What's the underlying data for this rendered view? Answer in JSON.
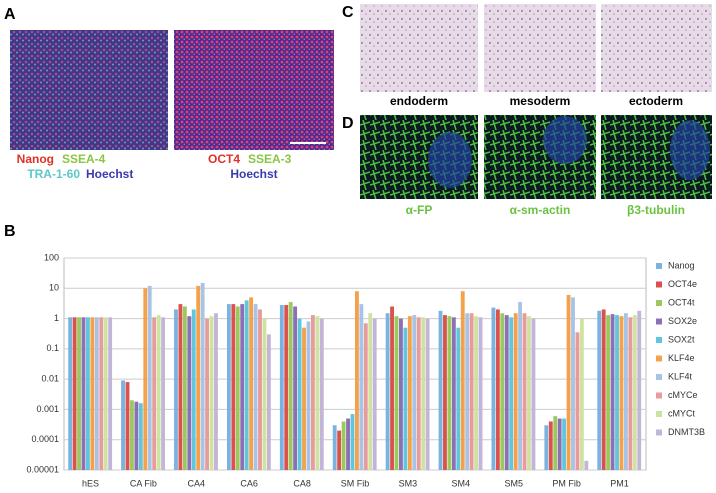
{
  "panels": {
    "a": {
      "label": "A",
      "left": {
        "line1a": "Nanog",
        "line1b": "SSEA-4",
        "line2a": "TRA-1-60",
        "line2b": "Hoechst"
      },
      "right": {
        "line1a": "OCT4",
        "line1b": "SSEA-3",
        "line2": "Hoechst"
      }
    },
    "b": {
      "label": "B"
    },
    "c": {
      "label": "C",
      "captions": [
        "endoderm",
        "mesoderm",
        "ectoderm"
      ]
    },
    "d": {
      "label": "D",
      "captions": [
        "α-FP",
        "α-sm-actin",
        "β3-tubulin"
      ]
    }
  },
  "chart_data": {
    "type": "bar",
    "log_scale": true,
    "grid": true,
    "legend": "right",
    "categories": [
      "hES",
      "CA Fib",
      "CA4",
      "CA6",
      "CA8",
      "SM Fib",
      "SM3",
      "SM4",
      "SM5",
      "PM Fib",
      "PM1"
    ],
    "ylim": [
      1e-05,
      100
    ],
    "yticks": [
      100,
      10,
      1,
      0.1,
      0.01,
      0.001,
      0.0001,
      1e-05
    ],
    "series": [
      {
        "name": "Nanog",
        "color": "#7ab2e0",
        "values": [
          1.1,
          0.009,
          2,
          3,
          2.8,
          0.0003,
          1.5,
          1.8,
          2.3,
          0.0003,
          1.8
        ]
      },
      {
        "name": "OCT4e",
        "color": "#d9524e",
        "values": [
          1.1,
          0.008,
          3,
          3,
          2.8,
          0.0002,
          2.5,
          1.3,
          2,
          0.0004,
          2
        ]
      },
      {
        "name": "OCT4t",
        "color": "#9bc95e",
        "values": [
          1.1,
          0.002,
          2.5,
          2.5,
          3.5,
          0.0004,
          1.2,
          1.2,
          1.5,
          0.0006,
          1.3
        ]
      },
      {
        "name": "SOX2e",
        "color": "#8b70b5",
        "values": [
          1.1,
          0.0018,
          1.2,
          3,
          2.5,
          0.0005,
          1,
          1.1,
          1.3,
          0.0005,
          1.4
        ]
      },
      {
        "name": "SOX2t",
        "color": "#5fc6dc",
        "values": [
          1.1,
          0.0016,
          2,
          4,
          1,
          0.0007,
          0.5,
          0.5,
          1.1,
          0.0005,
          1.3
        ]
      },
      {
        "name": "KLF4e",
        "color": "#f5a04a",
        "values": [
          1.1,
          10,
          12,
          5,
          0.5,
          8,
          1.2,
          8,
          1.5,
          6,
          1.2
        ]
      },
      {
        "name": "KLF4t",
        "color": "#a7c3e6",
        "values": [
          1.1,
          12,
          15,
          3,
          0.8,
          3,
          1.3,
          1.5,
          3.5,
          5,
          1.5
        ]
      },
      {
        "name": "cMYCe",
        "color": "#e79b9b",
        "values": [
          1.1,
          1.1,
          1,
          2,
          1.3,
          0.7,
          1.1,
          1.5,
          1.5,
          0.35,
          1.1
        ]
      },
      {
        "name": "cMYCt",
        "color": "#cfe3a1",
        "values": [
          1.1,
          1.3,
          1.2,
          1,
          1.2,
          1.5,
          1.1,
          1.2,
          1.2,
          1,
          1.3
        ]
      },
      {
        "name": "DNMT3B",
        "color": "#c3b5d9",
        "values": [
          1.1,
          1.1,
          1.5,
          0.3,
          1,
          1,
          1,
          1.1,
          1,
          2e-05,
          1.8
        ]
      }
    ]
  }
}
